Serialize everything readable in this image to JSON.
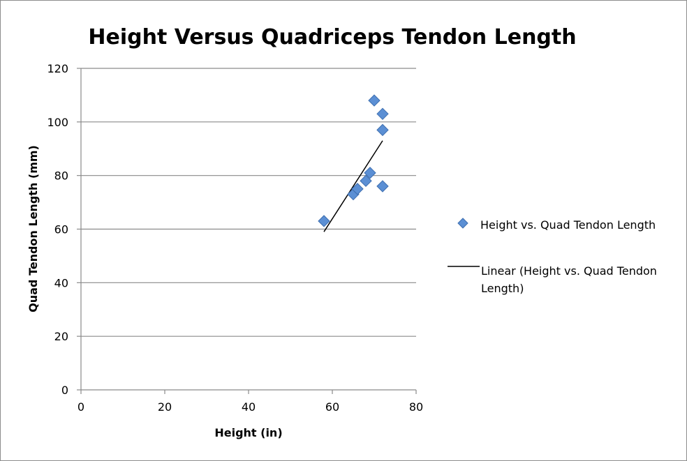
{
  "chart_data": {
    "type": "scatter",
    "title": "Height Versus Quadriceps Tendon Length",
    "xlabel": "Height (in)",
    "ylabel": "Quad Tendon Length (mm)",
    "xlim": [
      0,
      80
    ],
    "ylim": [
      0,
      120
    ],
    "x_ticks": [
      "0",
      "20",
      "40",
      "60",
      "80"
    ],
    "y_ticks": [
      "0",
      "20",
      "40",
      "60",
      "80",
      "100",
      "120"
    ],
    "grid": "horizontal",
    "legend_position": "right",
    "series": [
      {
        "name": "Height vs. Quad Tendon Length",
        "marker": "diamond",
        "color": "#5b8fd4",
        "points": [
          {
            "x": 58,
            "y": 63
          },
          {
            "x": 65,
            "y": 73
          },
          {
            "x": 66,
            "y": 75
          },
          {
            "x": 68,
            "y": 78
          },
          {
            "x": 69,
            "y": 81
          },
          {
            "x": 70,
            "y": 108
          },
          {
            "x": 72,
            "y": 103
          },
          {
            "x": 72,
            "y": 97
          },
          {
            "x": 72,
            "y": 76
          }
        ]
      }
    ],
    "trendline": {
      "name_lines": [
        "Linear (Height vs. Quad Tendon",
        "Length)"
      ],
      "type": "linear",
      "color": "#000000",
      "from": {
        "x": 58,
        "y": 59
      },
      "to": {
        "x": 72,
        "y": 93
      }
    }
  }
}
